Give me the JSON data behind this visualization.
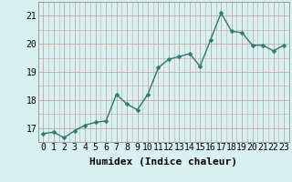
{
  "x": [
    0,
    1,
    2,
    3,
    4,
    5,
    6,
    7,
    8,
    9,
    10,
    11,
    12,
    13,
    14,
    15,
    16,
    17,
    18,
    19,
    20,
    21,
    22,
    23
  ],
  "y": [
    16.8,
    16.85,
    16.65,
    16.9,
    17.1,
    17.2,
    17.25,
    18.2,
    17.85,
    17.65,
    18.2,
    19.15,
    19.45,
    19.55,
    19.65,
    19.2,
    20.15,
    21.1,
    20.45,
    20.4,
    19.95,
    19.95,
    19.75,
    19.95
  ],
  "line_color": "#2d7a6e",
  "marker": "D",
  "markersize": 2.5,
  "linewidth": 1.0,
  "background_color": "#d8f0f0",
  "xlabel": "Humidex (Indice chaleur)",
  "ylim": [
    16.5,
    21.5
  ],
  "xlim": [
    -0.5,
    23.5
  ],
  "yticks": [
    17,
    18,
    19,
    20,
    21
  ],
  "xtick_labels": [
    "0",
    "1",
    "2",
    "3",
    "4",
    "5",
    "6",
    "7",
    "8",
    "9",
    "10",
    "11",
    "12",
    "13",
    "14",
    "15",
    "16",
    "17",
    "18",
    "19",
    "20",
    "21",
    "22",
    "23"
  ],
  "xlabel_fontsize": 8,
  "tick_fontsize": 7,
  "grid_major_color": "#c8a8a8",
  "grid_minor_color": "#c8a8a8"
}
